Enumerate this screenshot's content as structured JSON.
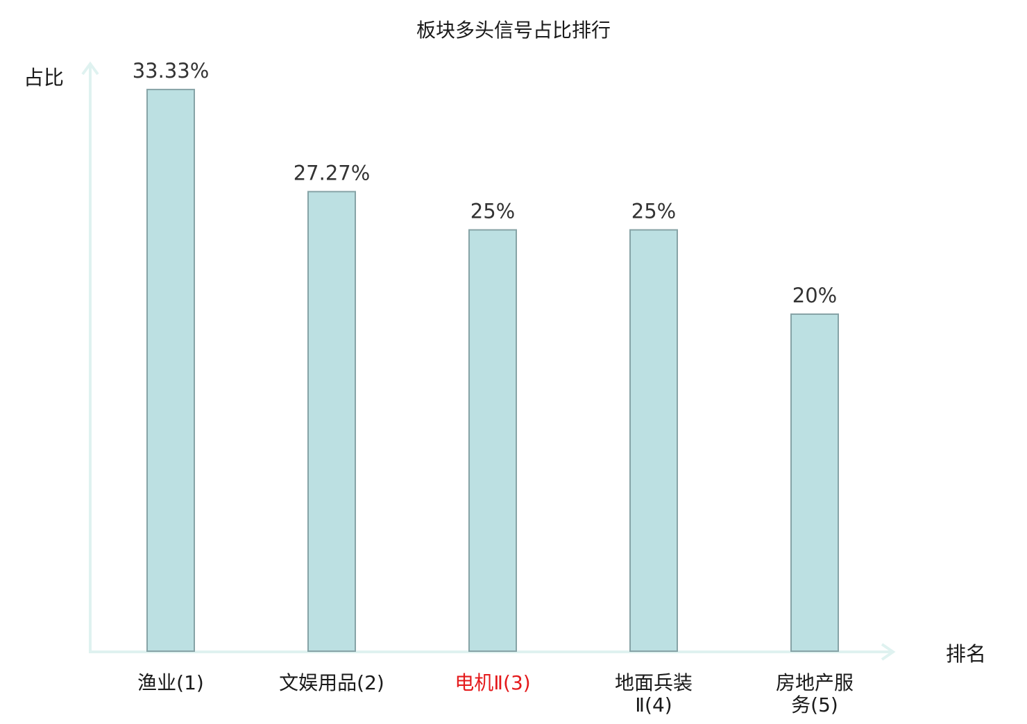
{
  "chart_data": {
    "type": "bar",
    "title": "板块多头信号占比排行",
    "xlabel": "排名",
    "ylabel": "占比",
    "ylim": [
      0,
      34
    ],
    "grid": false,
    "categories": [
      {
        "lines": [
          "渔业(1)"
        ],
        "highlight": false
      },
      {
        "lines": [
          "文娱用品(2)"
        ],
        "highlight": false
      },
      {
        "lines": [
          "电机Ⅱ(3)"
        ],
        "highlight": true
      },
      {
        "lines": [
          "地面兵装",
          "Ⅱ(4)"
        ],
        "highlight": false
      },
      {
        "lines": [
          "房地产服",
          "务(5)"
        ],
        "highlight": false
      }
    ],
    "values": [
      33.33,
      27.27,
      25,
      25,
      20
    ],
    "value_labels": [
      "33.33%",
      "27.27%",
      "25%",
      "25%",
      "20%"
    ],
    "colors": {
      "bar_fill": "#bce0e2",
      "bar_stroke": "#86a3a6",
      "axis": "#dff2f0",
      "highlight_text": "#e41a1c",
      "text": "#1a1a1a",
      "value_text": "#333333"
    }
  }
}
